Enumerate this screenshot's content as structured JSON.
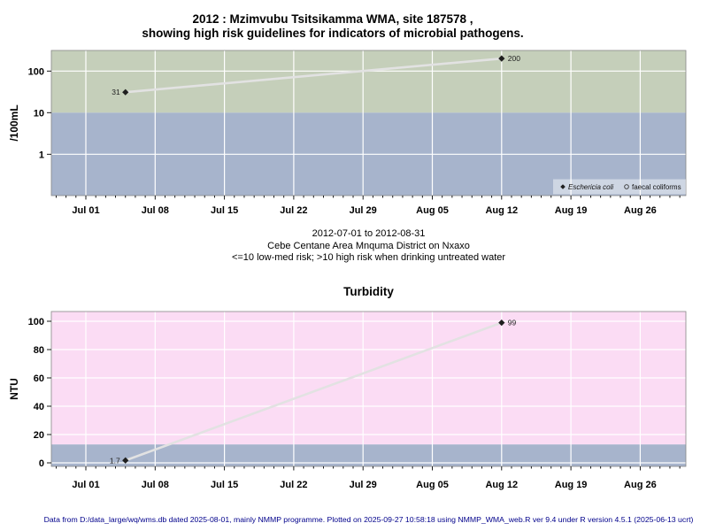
{
  "header": {
    "title_line1": "2012 : Mzimvubu Tsitsikamma WMA, site 187578 ,",
    "title_line2": "showing high risk guidelines for indicators of microbial pathogens."
  },
  "between_charts": {
    "line1": "2012-07-01 to 2012-08-31",
    "line2": "Cebe Centane Area Mnquma District on Nxaxo",
    "line3": "<=10 low-med risk; >10 high risk when drinking untreated water"
  },
  "turbidity_title": "Turbidity",
  "footer": {
    "text": "Data from D:/data_large/wq/wms.db dated 2025-08-01, mainly NMMP programme. Plotted on 2025-09-27 10:58:18 using NMMP_WMA_web.R ver 9.4 under R version 4.5.1 (2025-06-13 ucrt)"
  },
  "colors": {
    "high_risk_microbial_band": "#c5cfba",
    "low_med_risk_band": "#a7b4cc",
    "high_risk_turbidity_band": "#fbdcf4",
    "trend_line": "#e2e2e2",
    "marker": "#1f1f1f",
    "gridline": "#ffffff",
    "footer_text": "#00008b"
  },
  "chart_data": [
    {
      "id": "microbial",
      "type": "line",
      "title": "",
      "ylabel": "/100mL",
      "yscale": "log",
      "ylim": [
        0.1,
        313
      ],
      "yticks": [
        100,
        10,
        1
      ],
      "ygrid": [
        100,
        1
      ],
      "x_start": "2012-07-01",
      "x_end": "2012-08-31",
      "x_ticklabels": [
        "Jul 01",
        "Jul 08",
        "Jul 15",
        "Jul 22",
        "Jul 29",
        "Aug 05",
        "Aug 12",
        "Aug 19",
        "Aug 26"
      ],
      "bands": [
        {
          "name": "high-risk",
          "from": 10,
          "to": 320,
          "color": "#c5cfba"
        },
        {
          "name": "low-med-risk",
          "from": 0.09,
          "to": 10,
          "color": "#a7b4cc"
        }
      ],
      "series": [
        {
          "name": "Eschericia coli",
          "marker": "filled-diamond",
          "points": [
            {
              "date": "2012-07-05",
              "value": 31,
              "label": "31",
              "label_side": "left"
            },
            {
              "date": "2012-08-12",
              "value": 200,
              "label": "200",
              "label_side": "right"
            }
          ]
        },
        {
          "name": "faecal coliforms",
          "marker": "open-circle",
          "points": []
        }
      ],
      "legend": {
        "position": "bottom-right",
        "entries": [
          {
            "label": "Eschericia coli",
            "marker": "filled-diamond",
            "italic": true
          },
          {
            "label": "faecal coliforms",
            "marker": "open-circle",
            "italic": false
          }
        ]
      }
    },
    {
      "id": "turbidity",
      "type": "line",
      "title": "Turbidity",
      "ylabel": "NTU",
      "yscale": "linear",
      "ylim": [
        -2.5,
        107
      ],
      "yticks": [
        100,
        80,
        60,
        40,
        20,
        0
      ],
      "ygrid": [
        100,
        80,
        60,
        40,
        20,
        0
      ],
      "x_start": "2012-07-01",
      "x_end": "2012-08-31",
      "x_ticklabels": [
        "Jul 01",
        "Jul 08",
        "Jul 15",
        "Jul 22",
        "Jul 29",
        "Aug 05",
        "Aug 12",
        "Aug 19",
        "Aug 26"
      ],
      "bands": [
        {
          "name": "high-risk",
          "from": 13,
          "to": 110,
          "color": "#fbdcf4"
        },
        {
          "name": "low-med-risk",
          "from": -4,
          "to": 13,
          "color": "#a7b4cc"
        }
      ],
      "series": [
        {
          "name": "Turbidity",
          "marker": "filled-diamond",
          "points": [
            {
              "date": "2012-07-05",
              "value": 1.7,
              "label": "1.7",
              "label_side": "left"
            },
            {
              "date": "2012-08-12",
              "value": 99,
              "label": "99",
              "label_side": "right"
            }
          ]
        }
      ]
    }
  ]
}
